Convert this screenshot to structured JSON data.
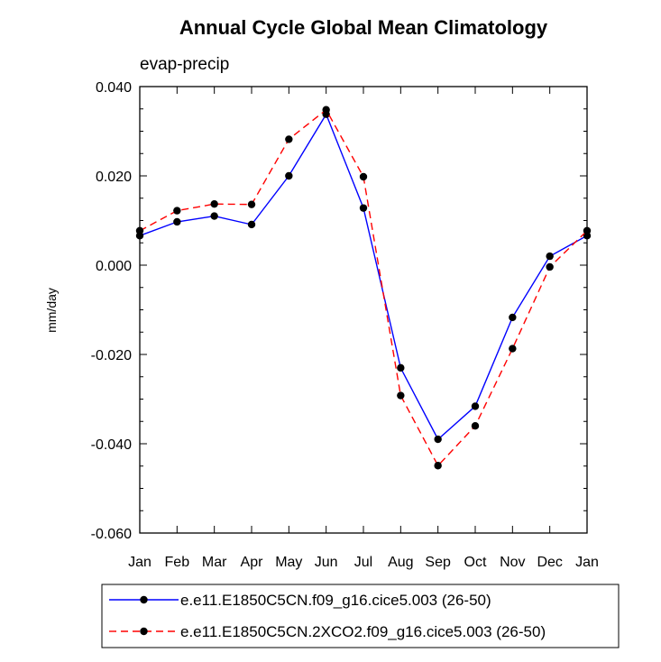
{
  "chart_data": {
    "type": "line",
    "title": "Annual Cycle Global Mean Climatology",
    "subtitle": "evap-precip",
    "xlabel": "",
    "ylabel": "mm/day",
    "categories": [
      "Jan",
      "Feb",
      "Mar",
      "Apr",
      "May",
      "Jun",
      "Jul",
      "Aug",
      "Sep",
      "Oct",
      "Nov",
      "Dec",
      "Jan"
    ],
    "ylim": [
      -0.06,
      0.04
    ],
    "yticks": [
      -0.06,
      -0.04,
      -0.02,
      0.0,
      0.02,
      0.04
    ],
    "ytick_labels": [
      "-0.060",
      "-0.040",
      "-0.020",
      "0.000",
      "0.020",
      "0.040"
    ],
    "legend_position": "bottom",
    "grid": false,
    "series": [
      {
        "name": "e.e11.E1850C5CN.f09_g16.cice5.003 (26-50)",
        "color": "#0000ff",
        "dash": "solid",
        "values": [
          0.0066,
          0.0097,
          0.011,
          0.0091,
          0.02,
          0.0338,
          0.0128,
          -0.023,
          -0.039,
          -0.0316,
          -0.0117,
          0.002,
          0.0066
        ]
      },
      {
        "name": "e.e11.E1850C5CN.2XCO2.f09_g16.cice5.003 (26-50)",
        "color": "#ff0000",
        "dash": "dashed",
        "values": [
          0.0077,
          0.0122,
          0.0137,
          0.0136,
          0.0282,
          0.0348,
          0.0198,
          -0.0292,
          -0.0449,
          -0.036,
          -0.0187,
          -0.0004,
          0.0077
        ]
      }
    ]
  }
}
